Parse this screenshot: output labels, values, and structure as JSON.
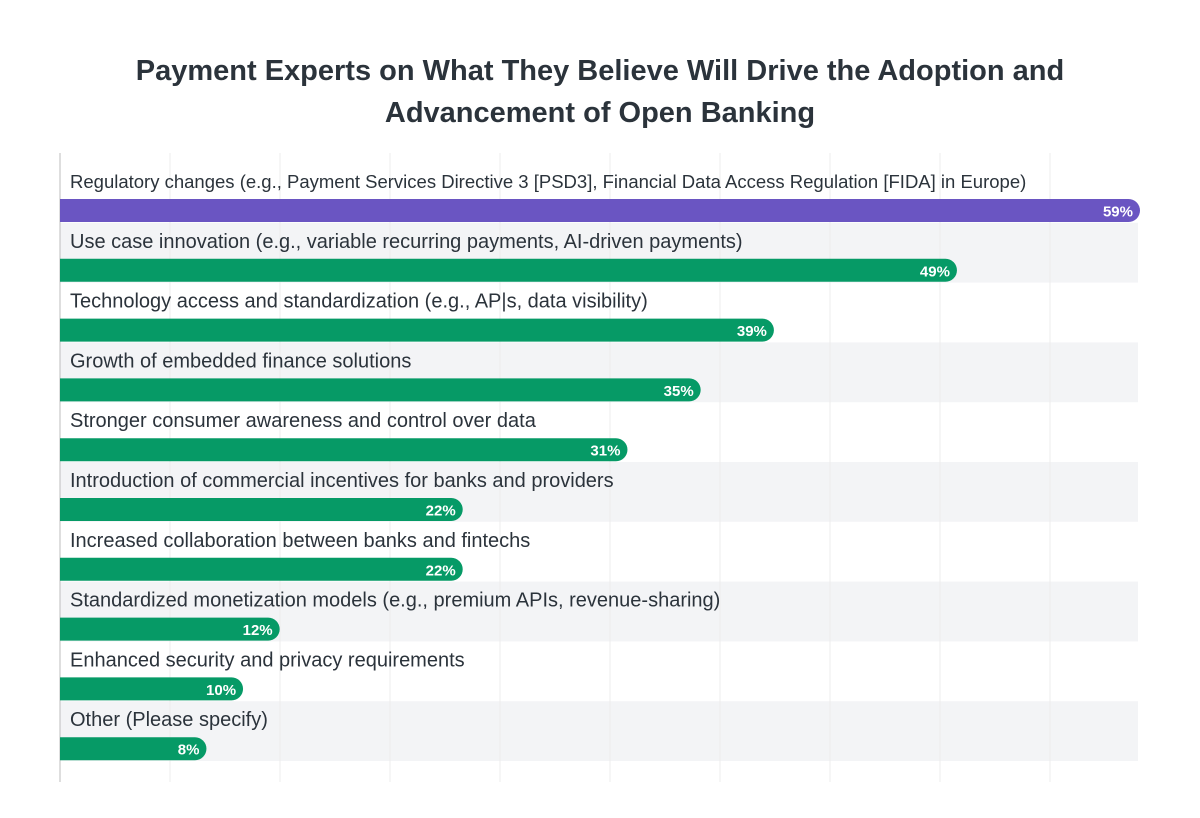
{
  "chart_data": {
    "type": "bar",
    "orientation": "horizontal",
    "title_lines": [
      "Payment Experts on What They Believe Will Drive the Adoption and",
      "Advancement of Open Banking"
    ],
    "categories": [
      "Regulatory changes (e.g., Payment Services Directive 3 [PSD3], Financial Data Access Regulation [FIDA] in Europe)",
      "Use case innovation (e.g., variable recurring payments, AI-driven payments)",
      "Technology access and standardization (e.g., AP|s, data visibility)",
      "Growth of embedded finance solutions",
      "Stronger consumer awareness and control over data",
      "Introduction of commercial incentives for banks and providers",
      "Increased collaboration between banks and fintechs",
      "Standardized monetization models (e.g., premium APIs, revenue-sharing)",
      "Enhanced security and privacy requirements",
      "Other (Please specify)"
    ],
    "values": [
      59,
      49,
      39,
      35,
      31,
      22,
      22,
      12,
      10,
      8
    ],
    "value_labels": [
      "59%",
      "49%",
      "39%",
      "35%",
      "31%",
      "22%",
      "22%",
      "12%",
      "10%",
      "8%"
    ],
    "xlim": [
      0,
      59
    ],
    "grid": true,
    "colors": {
      "highlight": "#6a55c2",
      "bar": "#069a66",
      "band": "#f3f4f6",
      "grid": "#ececec",
      "axis": "#bdbdbd",
      "text": "#2b333b"
    }
  }
}
